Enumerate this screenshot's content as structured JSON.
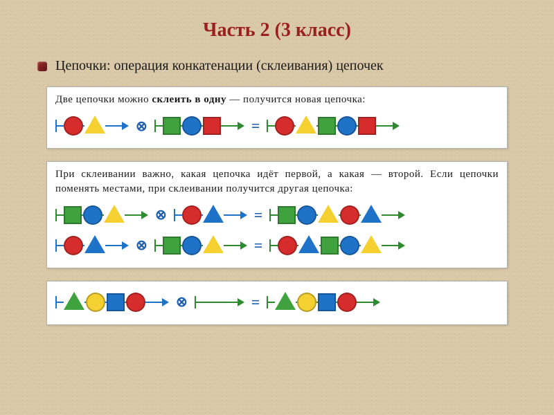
{
  "title": "Часть 2 (3 класс)",
  "title_color": "#9a2020",
  "title_fontsize": 28,
  "bullet_text": "Цепочки: операция конкатенации (склеивания) цепочек",
  "colors": {
    "red": "#d72c2c",
    "yellow": "#f4d030",
    "green": "#3fa23f",
    "blue": "#1e73c8",
    "axis_blue": "#1e73c8",
    "axis_green": "#2e8a2e",
    "op_blue": "#1e5fb0",
    "background": "#d9c9a8",
    "panel_bg": "#ffffff",
    "text": "#1a1a1a"
  },
  "operator_symbol": "⊗",
  "equals_symbol": "=",
  "panels": [
    {
      "text": "Две цепочки можно <b>склеить в одну</b> — получится новая цепочка:",
      "rows": [
        {
          "left": {
            "axis": "blue",
            "beads": [
              {
                "s": "circle",
                "c": "red"
              },
              {
                "s": "triangle",
                "c": "yellow"
              }
            ]
          },
          "right": {
            "axis": "green",
            "beads": [
              {
                "s": "square",
                "c": "green"
              },
              {
                "s": "circle",
                "c": "blue"
              },
              {
                "s": "square",
                "c": "red"
              }
            ]
          },
          "result": {
            "axis": "green",
            "beads": [
              {
                "s": "circle",
                "c": "red"
              },
              {
                "s": "triangle",
                "c": "yellow"
              },
              {
                "s": "square",
                "c": "green"
              },
              {
                "s": "circle",
                "c": "blue"
              },
              {
                "s": "square",
                "c": "red"
              }
            ]
          }
        }
      ]
    },
    {
      "text": "При склеивании важно, какая цепочка идёт первой, а какая — второй. Если цепочки поменять местами, при склеивании получится другая цепочка:",
      "rows": [
        {
          "left": {
            "axis": "green",
            "beads": [
              {
                "s": "square",
                "c": "green"
              },
              {
                "s": "circle",
                "c": "blue"
              },
              {
                "s": "triangle",
                "c": "yellow"
              }
            ]
          },
          "right": {
            "axis": "blue",
            "beads": [
              {
                "s": "circle",
                "c": "red"
              },
              {
                "s": "triangle",
                "c": "blue"
              }
            ]
          },
          "result": {
            "axis": "green",
            "beads": [
              {
                "s": "square",
                "c": "green"
              },
              {
                "s": "circle",
                "c": "blue"
              },
              {
                "s": "triangle",
                "c": "yellow"
              },
              {
                "s": "circle",
                "c": "red"
              },
              {
                "s": "triangle",
                "c": "blue"
              }
            ]
          }
        },
        {
          "left": {
            "axis": "blue",
            "beads": [
              {
                "s": "circle",
                "c": "red"
              },
              {
                "s": "triangle",
                "c": "blue"
              }
            ]
          },
          "right": {
            "axis": "green",
            "beads": [
              {
                "s": "square",
                "c": "green"
              },
              {
                "s": "circle",
                "c": "blue"
              },
              {
                "s": "triangle",
                "c": "yellow"
              }
            ]
          },
          "result": {
            "axis": "green",
            "beads": [
              {
                "s": "circle",
                "c": "red"
              },
              {
                "s": "triangle",
                "c": "blue"
              },
              {
                "s": "square",
                "c": "green"
              },
              {
                "s": "circle",
                "c": "blue"
              },
              {
                "s": "triangle",
                "c": "yellow"
              }
            ]
          }
        }
      ]
    },
    {
      "text": "",
      "rows": [
        {
          "left": {
            "axis": "blue",
            "beads": [
              {
                "s": "triangle",
                "c": "green"
              },
              {
                "s": "circle",
                "c": "yellow"
              },
              {
                "s": "square",
                "c": "blue"
              },
              {
                "s": "circle",
                "c": "red"
              }
            ]
          },
          "right": {
            "axis": "green",
            "beads": []
          },
          "result": {
            "axis": "green",
            "beads": [
              {
                "s": "triangle",
                "c": "green"
              },
              {
                "s": "circle",
                "c": "yellow"
              },
              {
                "s": "square",
                "c": "blue"
              },
              {
                "s": "circle",
                "c": "red"
              }
            ]
          }
        }
      ]
    }
  ],
  "bead_size": 28,
  "bead_gap": 2,
  "lead_in": 10,
  "lead_out": 22,
  "empty_chain_length": 60
}
